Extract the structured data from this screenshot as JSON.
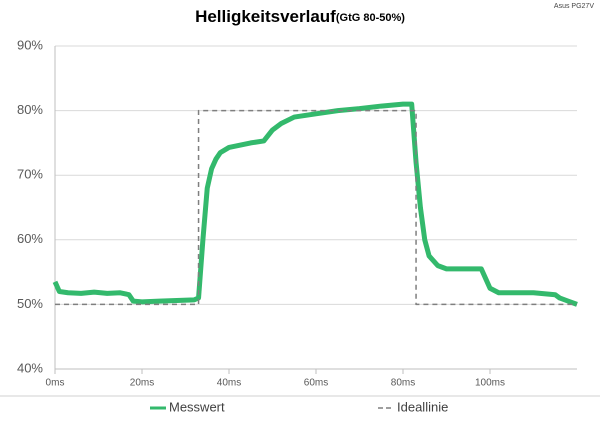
{
  "chart_data": {
    "type": "line",
    "title": "Helligkeitsverlauf",
    "subtitle": "(GtG 80-50%)",
    "annotation": "Asus PG27V",
    "xlim": [
      0,
      120
    ],
    "xticks": [
      {
        "value": 0,
        "label": "0ms"
      },
      {
        "value": 20,
        "label": "20ms"
      },
      {
        "value": 40,
        "label": "40ms"
      },
      {
        "value": 60,
        "label": "60ms"
      },
      {
        "value": 80,
        "label": "80ms"
      },
      {
        "value": 100,
        "label": "100ms"
      }
    ],
    "ylim": [
      40,
      90
    ],
    "yticks": [
      {
        "value": 40,
        "label": "40%"
      },
      {
        "value": 50,
        "label": "50%"
      },
      {
        "value": 60,
        "label": "60%"
      },
      {
        "value": 70,
        "label": "70%"
      },
      {
        "value": 80,
        "label": "80%"
      },
      {
        "value": 90,
        "label": "90%"
      }
    ],
    "grid": true,
    "series": [
      {
        "name": "Messwert",
        "color": "#33b96c",
        "dash": false,
        "x": [
          0,
          1,
          3,
          6,
          9,
          12,
          15,
          17,
          18,
          20,
          24,
          28,
          32,
          33,
          34,
          35,
          36,
          37,
          38,
          40,
          45,
          48,
          50,
          52,
          55,
          60,
          65,
          70,
          75,
          80,
          82,
          83,
          84,
          85,
          86,
          88,
          90,
          95,
          98,
          99,
          100,
          102,
          106,
          110,
          115,
          116,
          118,
          120
        ],
        "values": [
          53.5,
          52,
          51.8,
          51.7,
          51.9,
          51.7,
          51.8,
          51.5,
          50.5,
          50.4,
          50.5,
          50.6,
          50.7,
          51,
          60,
          68,
          71,
          72.5,
          73.5,
          74.3,
          75,
          75.3,
          77,
          78,
          79,
          79.5,
          80,
          80.3,
          80.7,
          81,
          81,
          72,
          65,
          60,
          57.5,
          56,
          55.5,
          55.5,
          55.5,
          54,
          52.5,
          51.8,
          51.8,
          51.8,
          51.5,
          51,
          50.5,
          50
        ]
      },
      {
        "name": "Ideallinie",
        "color": "#7f7f7f",
        "dash": true,
        "x": [
          0,
          33,
          33,
          83,
          83,
          120
        ],
        "values": [
          50,
          50,
          80,
          80,
          50,
          50
        ]
      }
    ]
  }
}
